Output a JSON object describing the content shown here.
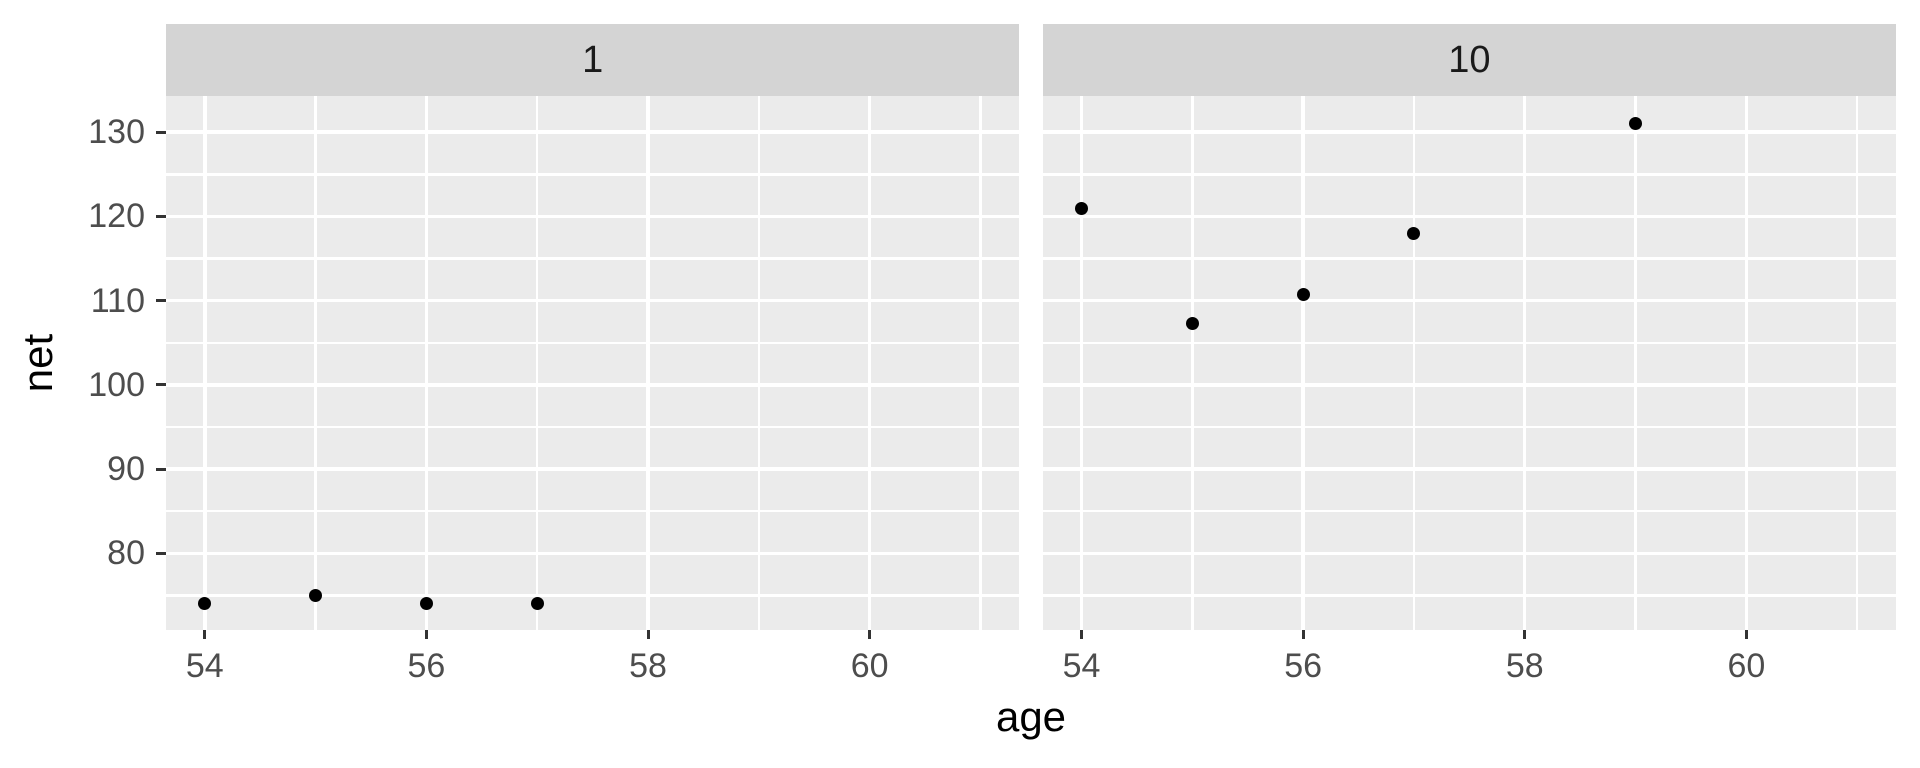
{
  "chart_data": {
    "type": "scatter",
    "title": "",
    "xlabel": "age",
    "ylabel": "net",
    "facet_labels": [
      "1",
      "10"
    ],
    "x_ticks": [
      54,
      56,
      58,
      60
    ],
    "x_minor_ticks": [
      55,
      57,
      59,
      61
    ],
    "y_ticks": [
      80,
      90,
      100,
      110,
      120,
      130
    ],
    "y_minor_ticks": [
      75,
      85,
      95,
      105,
      115,
      125
    ],
    "xlim": [
      53.65,
      61.35
    ],
    "ylim": [
      70.9,
      134.3
    ],
    "grid": true,
    "legend": "none",
    "facets": [
      {
        "label": "1",
        "points": [
          {
            "age": 54,
            "net": 74
          },
          {
            "age": 55,
            "net": 75
          },
          {
            "age": 56,
            "net": 74
          },
          {
            "age": 57,
            "net": 74
          }
        ]
      },
      {
        "label": "10",
        "points": [
          {
            "age": 54,
            "net": 121
          },
          {
            "age": 55,
            "net": 107.3
          },
          {
            "age": 56,
            "net": 110.7
          },
          {
            "age": 57,
            "net": 118
          },
          {
            "age": 59,
            "net": 131
          }
        ]
      }
    ]
  },
  "style": {
    "background": "#FFFFFF",
    "panel_fill": "#EBEBEB",
    "strip_fill": "#D4D4D4",
    "strip_text_color": "#1A1A1A",
    "grid_color": "#FFFFFF",
    "point_color": "#000000",
    "tick_mark_color": "#333333",
    "tick_label_color": "#4D4D4D",
    "axis_title_color": "#000000"
  }
}
